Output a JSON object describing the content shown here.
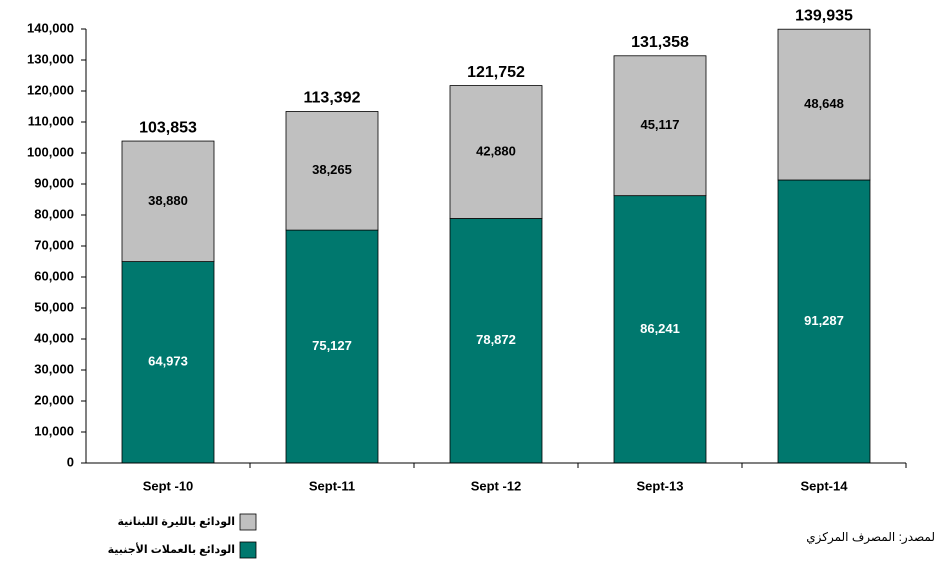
{
  "chart_data": {
    "type": "stacked_bar",
    "categories": [
      "Sept -10",
      "Sept-11",
      "Sept -12",
      "Sept-13",
      "Sept-14"
    ],
    "series": [
      {
        "name": "الودائع بالعملات الأجنبية",
        "color": "#00786e",
        "label_color": "#ffffff",
        "values": [
          64973,
          75127,
          78872,
          86241,
          91287
        ],
        "value_labels": [
          "64,973",
          "75,127",
          "78,872",
          "86,241",
          "91,287"
        ]
      },
      {
        "name": "الودائع بالليرة اللبنانية",
        "color": "#c0c0c0",
        "label_color": "#000000",
        "values": [
          38880,
          38265,
          42880,
          45117,
          48648
        ],
        "value_labels": [
          "38,880",
          "38,265",
          "42,880",
          "45,117",
          "48,648"
        ]
      }
    ],
    "totals": [
      103853,
      113392,
      121752,
      131358,
      139935
    ],
    "total_labels": [
      "103,853",
      "113,392",
      "121,752",
      "131,358",
      "139,935"
    ],
    "ylim": [
      0,
      140000
    ],
    "yticks": [
      0,
      {
        "value": 10000,
        "label": "10,000"
      },
      {
        "value": 20000,
        "label": "20,000"
      },
      {
        "value": 30000,
        "label": "30,000"
      },
      {
        "value": 40000,
        "label": "40,000"
      },
      {
        "value": 50000,
        "label": "50,000"
      },
      {
        "value": 60000,
        "label": "60,000"
      },
      {
        "value": 70000,
        "label": "70,000"
      },
      {
        "value": 80000,
        "label": "80,000"
      },
      {
        "value": 90000,
        "label": "90,000"
      },
      {
        "value": 100000,
        "label": "100,000"
      },
      {
        "value": 110000,
        "label": "110,000"
      },
      {
        "value": 120000,
        "label": "120,000"
      },
      {
        "value": 130000,
        "label": "130,000"
      },
      {
        "value": 140000,
        "label": "140,000"
      }
    ],
    "grid": false,
    "source": "لمصدر: المصرف المركزي"
  }
}
